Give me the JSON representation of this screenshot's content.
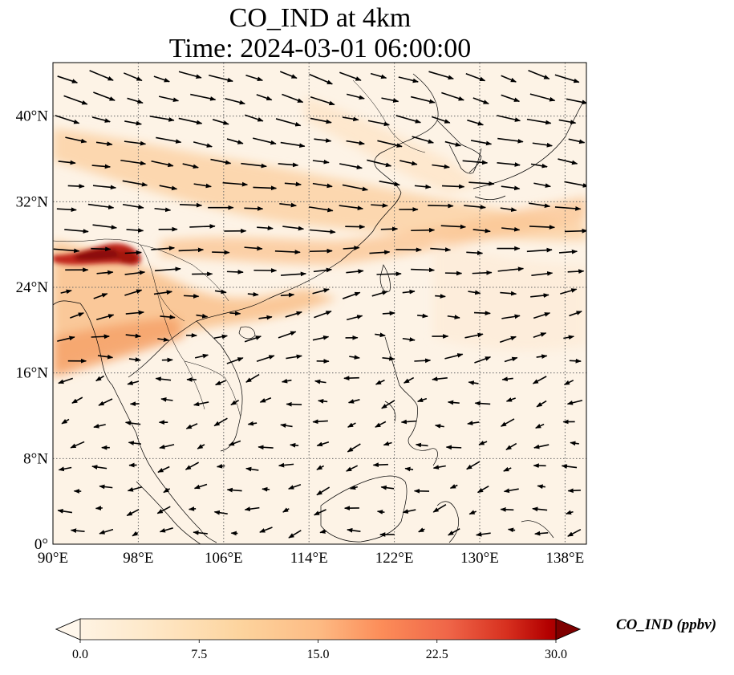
{
  "title": {
    "line1": "CO_IND at 4km",
    "line2": "Time: 2024-03-01 06:00:00"
  },
  "map": {
    "lon_range": [
      90,
      140
    ],
    "lat_range": [
      0,
      45
    ],
    "lon_ticks": [
      "90°E",
      "98°E",
      "106°E",
      "114°E",
      "122°E",
      "130°E",
      "138°E"
    ],
    "lat_ticks": [
      "0°",
      "8°N",
      "16°N",
      "24°N",
      "32°N",
      "40°N"
    ],
    "lon_tick_values": [
      90,
      98,
      106,
      114,
      122,
      130,
      138
    ],
    "lat_tick_values": [
      0,
      8,
      16,
      24,
      32,
      40
    ],
    "gridlines": true,
    "gridline_style": "dotted",
    "colors": {
      "background": "#fdf3e6",
      "low": "#fff5eb",
      "mid": "#fdc38a",
      "high": "#d2411a",
      "max": "#7f0000",
      "coast": "#000000"
    }
  },
  "colorbar": {
    "label": "CO_IND (ppbv)",
    "ticks": [
      "0.0",
      "7.5",
      "15.0",
      "22.5",
      "30.0"
    ],
    "tick_values": [
      0,
      7.5,
      15,
      22.5,
      30
    ],
    "range": [
      0,
      30
    ],
    "extend": "both",
    "colormap": "OrRd"
  }
}
